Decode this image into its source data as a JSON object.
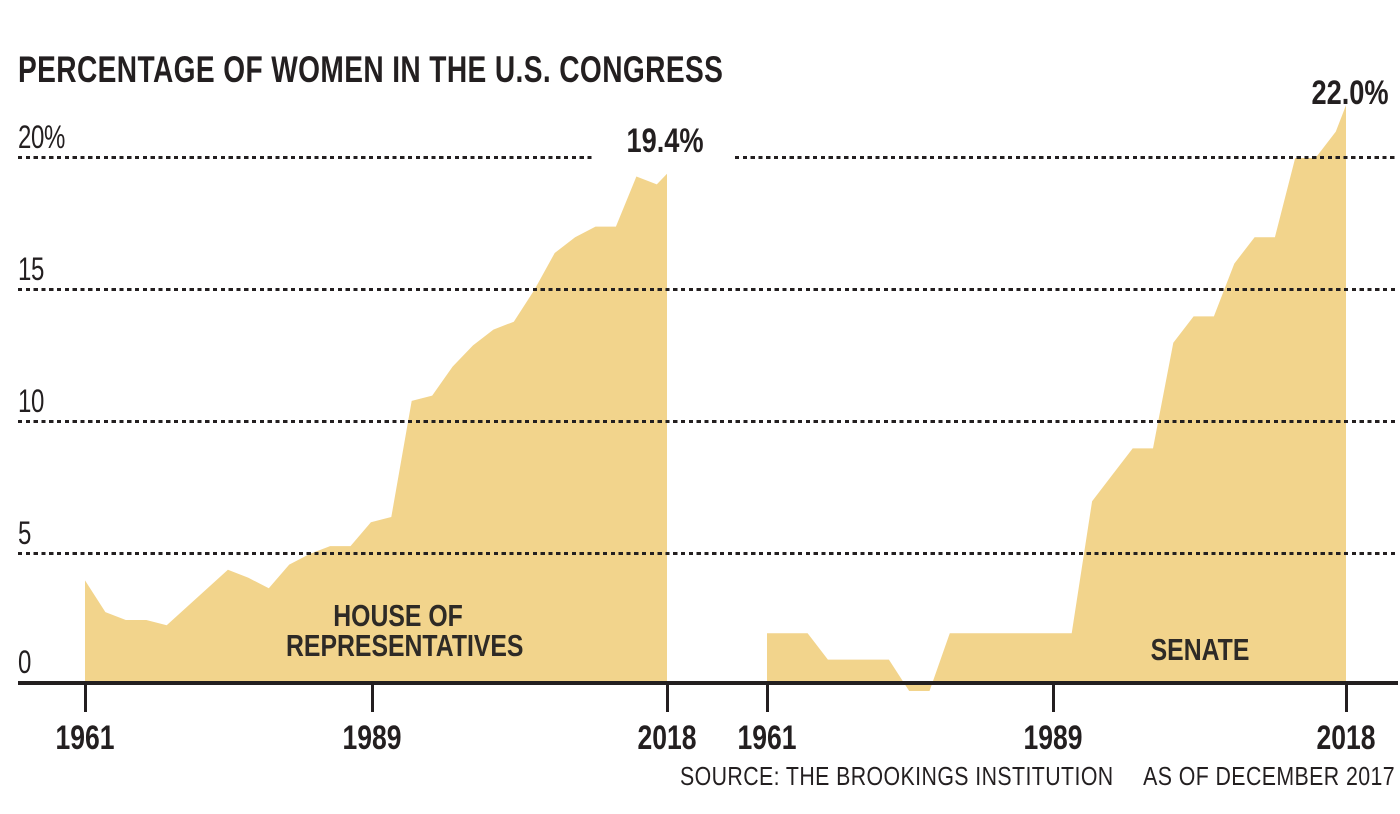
{
  "header": {
    "title": "PERCENTAGE OF WOMEN IN THE U.S. CONGRESS"
  },
  "colors": {
    "area_fill": "#f2d48c",
    "ink": "#231f20",
    "background": "#ffffff"
  },
  "axes": {
    "y_ticks": [
      {
        "label": "20%",
        "value": 20
      },
      {
        "label": "15",
        "value": 15
      },
      {
        "label": "10",
        "value": 10
      },
      {
        "label": "5",
        "value": 5
      },
      {
        "label": "0",
        "value": 0
      }
    ],
    "x_ticks_left": [
      "1961",
      "1989",
      "2018"
    ],
    "x_ticks_right": [
      "1961",
      "1989",
      "2018"
    ]
  },
  "footer": {
    "source": "SOURCE: THE BROOKINGS INSTITUTION",
    "as_of": "AS OF DECEMBER 2017"
  },
  "chart_data": [
    {
      "type": "area",
      "name": "house-of-representatives",
      "label_line1": "HOUSE OF",
      "label_line2": "REPRESENTATIVES",
      "annotation": "19.4%",
      "xlabel_ticks": [
        1961,
        1989,
        2018
      ],
      "ylim": [
        0,
        22
      ],
      "grid": "dotted horizontal at 5,10,15,20",
      "x": [
        1961,
        1963,
        1965,
        1967,
        1969,
        1971,
        1973,
        1975,
        1977,
        1979,
        1981,
        1983,
        1985,
        1987,
        1989,
        1991,
        1993,
        1995,
        1997,
        1999,
        2001,
        2003,
        2005,
        2007,
        2009,
        2011,
        2013,
        2015,
        2017,
        2018
      ],
      "values": [
        4.0,
        2.8,
        2.5,
        2.5,
        2.3,
        3.0,
        3.7,
        4.4,
        4.1,
        3.7,
        4.6,
        5.0,
        5.3,
        5.3,
        6.2,
        6.4,
        10.8,
        11.0,
        12.1,
        12.9,
        13.5,
        13.8,
        15.0,
        16.4,
        17.0,
        17.4,
        17.4,
        19.3,
        19.0,
        19.4
      ]
    },
    {
      "type": "area",
      "name": "senate",
      "label_line1": "SENATE",
      "label_line2": "",
      "annotation": "22.0%",
      "xlabel_ticks": [
        1961,
        1989,
        2018
      ],
      "ylim": [
        0,
        22
      ],
      "grid": "dotted horizontal at 5,10,15,20",
      "x": [
        1961,
        1963,
        1965,
        1967,
        1969,
        1971,
        1973,
        1975,
        1977,
        1979,
        1981,
        1983,
        1985,
        1987,
        1989,
        1991,
        1993,
        1995,
        1997,
        1999,
        2001,
        2003,
        2005,
        2007,
        2009,
        2011,
        2013,
        2015,
        2017,
        2018
      ],
      "values": [
        2.0,
        2.0,
        2.0,
        1.0,
        1.0,
        1.0,
        1.0,
        0.0,
        0.0,
        2.0,
        2.0,
        2.0,
        2.0,
        2.0,
        2.0,
        2.0,
        7.0,
        8.0,
        9.0,
        9.0,
        13.0,
        14.0,
        14.0,
        16.0,
        17.0,
        17.0,
        20.0,
        20.0,
        21.0,
        22.0
      ]
    }
  ]
}
